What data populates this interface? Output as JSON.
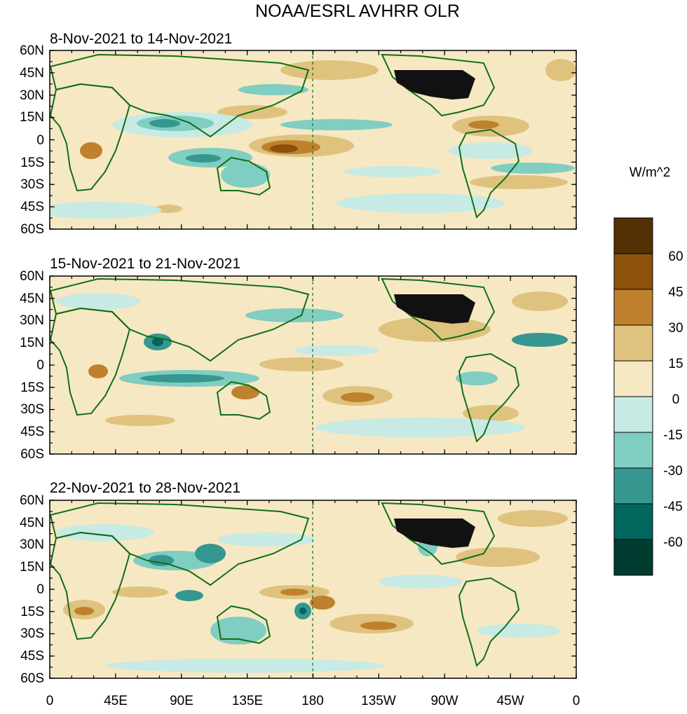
{
  "title": "NOAA/ESRL AVHRR OLR",
  "panels": [
    {
      "date_range": "8-Nov-2021 to 14-Nov-2021"
    },
    {
      "date_range": "15-Nov-2021 to 21-Nov-2021"
    },
    {
      "date_range": "22-Nov-2021 to 28-Nov-2021"
    }
  ],
  "lat_labels": [
    "60N",
    "45N",
    "30N",
    "15N",
    "0",
    "15S",
    "30S",
    "45S",
    "60S"
  ],
  "lon_labels": [
    "0",
    "45E",
    "90E",
    "135E",
    "180",
    "135W",
    "90W",
    "45W",
    "0"
  ],
  "colorbar": {
    "units_label": "W/m^2",
    "tick_labels": [
      "60",
      "45",
      "30",
      "15",
      "0",
      "-15",
      "-30",
      "-45",
      "-60"
    ],
    "colors": [
      "#543005",
      "#8c510a",
      "#bf812d",
      "#dfc27d",
      "#f6e8c3",
      "#c7eae5",
      "#80cdc1",
      "#35978f",
      "#01665e",
      "#003c30"
    ]
  },
  "palette": {
    "land_outline": "#0f6e1a",
    "usa_fill": "#111111",
    "dateline": "#0f6e1a"
  }
}
